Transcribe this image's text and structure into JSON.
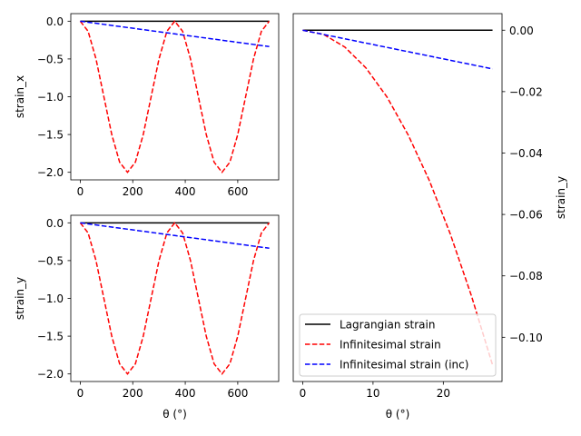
{
  "chart_data": [
    {
      "type": "line",
      "panel": "top-left",
      "ylabel": "strain_x",
      "xlabel": "",
      "xlim": [
        -36,
        756
      ],
      "ylim": [
        -2.1,
        0.1
      ],
      "xticks": [
        0,
        200,
        400,
        600
      ],
      "yticks": [
        0.0,
        -0.5,
        -1.0,
        -1.5,
        -2.0
      ],
      "x": [
        0,
        30,
        60,
        90,
        120,
        150,
        180,
        210,
        240,
        270,
        300,
        330,
        360,
        390,
        420,
        450,
        480,
        510,
        540,
        570,
        600,
        630,
        660,
        690,
        720
      ],
      "series": [
        {
          "name": "Lagrangian strain",
          "color": "#000000",
          "style": "solid",
          "values": [
            0,
            0,
            0,
            0,
            0,
            0,
            0,
            0,
            0,
            0,
            0,
            0,
            0,
            0,
            0,
            0,
            0,
            0,
            0,
            0,
            0,
            0,
            0,
            0,
            0
          ]
        },
        {
          "name": "Infinitesimal strain",
          "color": "#ff0000",
          "style": "dashed",
          "values": [
            0,
            -0.134,
            -0.5,
            -1.0,
            -1.5,
            -1.866,
            -2.0,
            -1.866,
            -1.5,
            -1.0,
            -0.5,
            -0.134,
            0,
            -0.134,
            -0.5,
            -1.0,
            -1.5,
            -1.866,
            -2.0,
            -1.866,
            -1.5,
            -1.0,
            -0.5,
            -0.134,
            0
          ]
        },
        {
          "name": "Infinitesimal strain (inc)",
          "color": "#0000ff",
          "style": "dashed",
          "values": [
            0,
            -0.014,
            -0.028,
            -0.042,
            -0.056,
            -0.07,
            -0.084,
            -0.098,
            -0.112,
            -0.126,
            -0.14,
            -0.154,
            -0.168,
            -0.182,
            -0.196,
            -0.21,
            -0.224,
            -0.238,
            -0.252,
            -0.266,
            -0.28,
            -0.294,
            -0.308,
            -0.322,
            -0.336
          ]
        }
      ]
    },
    {
      "type": "line",
      "panel": "bottom-left",
      "ylabel": "strain_y",
      "xlabel": "θ (°)",
      "xlim": [
        -36,
        756
      ],
      "ylim": [
        -2.1,
        0.1
      ],
      "xticks": [
        0,
        200,
        400,
        600
      ],
      "yticks": [
        0.0,
        -0.5,
        -1.0,
        -1.5,
        -2.0
      ],
      "x": [
        0,
        30,
        60,
        90,
        120,
        150,
        180,
        210,
        240,
        270,
        300,
        330,
        360,
        390,
        420,
        450,
        480,
        510,
        540,
        570,
        600,
        630,
        660,
        690,
        720
      ],
      "series": [
        {
          "name": "Lagrangian strain",
          "color": "#000000",
          "style": "solid",
          "values": [
            0,
            0,
            0,
            0,
            0,
            0,
            0,
            0,
            0,
            0,
            0,
            0,
            0,
            0,
            0,
            0,
            0,
            0,
            0,
            0,
            0,
            0,
            0,
            0,
            0
          ]
        },
        {
          "name": "Infinitesimal strain",
          "color": "#ff0000",
          "style": "dashed",
          "values": [
            0,
            -0.134,
            -0.5,
            -1.0,
            -1.5,
            -1.866,
            -2.0,
            -1.866,
            -1.5,
            -1.0,
            -0.5,
            -0.134,
            0,
            -0.134,
            -0.5,
            -1.0,
            -1.5,
            -1.866,
            -2.0,
            -1.866,
            -1.5,
            -1.0,
            -0.5,
            -0.134,
            0
          ]
        },
        {
          "name": "Infinitesimal strain (inc)",
          "color": "#0000ff",
          "style": "dashed",
          "values": [
            0,
            -0.014,
            -0.028,
            -0.042,
            -0.056,
            -0.07,
            -0.084,
            -0.098,
            -0.112,
            -0.126,
            -0.14,
            -0.154,
            -0.168,
            -0.182,
            -0.196,
            -0.21,
            -0.224,
            -0.238,
            -0.252,
            -0.266,
            -0.28,
            -0.294,
            -0.308,
            -0.322,
            -0.336
          ]
        }
      ]
    },
    {
      "type": "line",
      "panel": "right",
      "ylabel": "strain_y",
      "xlabel": "θ (°)",
      "xlim": [
        -1.35,
        28.35
      ],
      "ylim": [
        -0.1144,
        0.0054
      ],
      "xticks": [
        0,
        10,
        20
      ],
      "yticks": [
        0.0,
        -0.02,
        -0.04,
        -0.06,
        -0.08,
        -0.1
      ],
      "yaxis_side": "right",
      "legend": "lower-right",
      "x": [
        0,
        3,
        6,
        9,
        12,
        15,
        18,
        21,
        24,
        27
      ],
      "series": [
        {
          "name": "Lagrangian strain",
          "color": "#000000",
          "style": "solid",
          "values": [
            0,
            0,
            0,
            0,
            0,
            0,
            0,
            0,
            0,
            0
          ]
        },
        {
          "name": "Infinitesimal strain",
          "color": "#ff0000",
          "style": "dashed",
          "values": [
            0,
            -0.0014,
            -0.0055,
            -0.0123,
            -0.0218,
            -0.0341,
            -0.0489,
            -0.0664,
            -0.0865,
            -0.109
          ]
        },
        {
          "name": "Infinitesimal strain (inc)",
          "color": "#0000ff",
          "style": "dashed",
          "values": [
            0,
            -0.0014,
            -0.0028,
            -0.0042,
            -0.0056,
            -0.007,
            -0.0084,
            -0.0098,
            -0.0112,
            -0.0126
          ]
        }
      ]
    }
  ]
}
